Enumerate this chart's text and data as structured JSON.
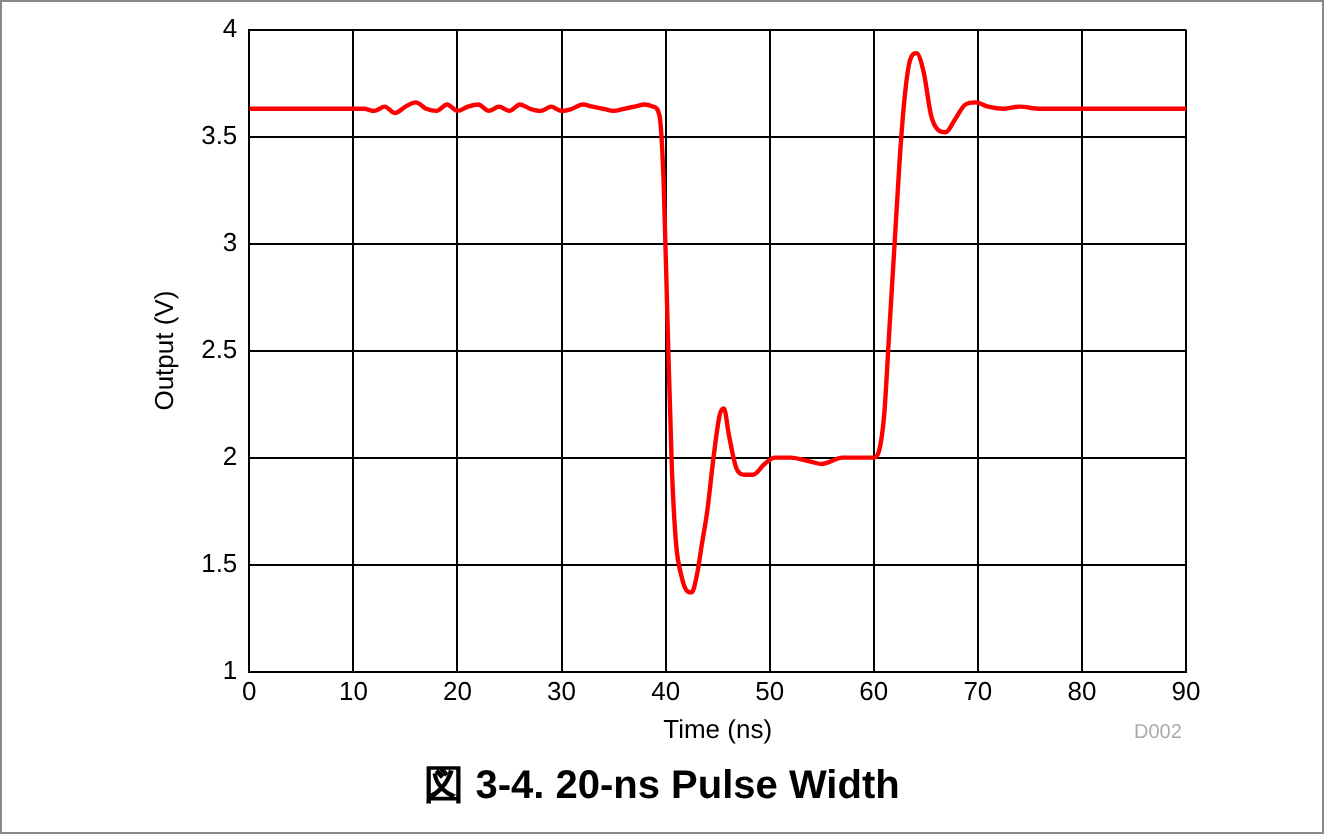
{
  "chart_data": {
    "type": "line",
    "title": "図 3-4. 20-ns Pulse Width",
    "xlabel": "Time (ns)",
    "ylabel": "Output (V)",
    "annotations": [
      "D002"
    ],
    "x": [
      0,
      10,
      11,
      12,
      13,
      14,
      15,
      16,
      17,
      18,
      19,
      20,
      21,
      22,
      23,
      24,
      25,
      26,
      27,
      28,
      29,
      30,
      31,
      32,
      33,
      34,
      35,
      36,
      37,
      38,
      38.8,
      39.4,
      39.8,
      40.2,
      40.6,
      41,
      41.5,
      42,
      42.5,
      43,
      43.5,
      44,
      44.6,
      45.2,
      45.6,
      46.1,
      46.8,
      47.6,
      48.4,
      49.5,
      50.5,
      52,
      54,
      55,
      57,
      59,
      60,
      60.5,
      61,
      61.5,
      62,
      62.5,
      63,
      63.5,
      64.1,
      64.8,
      65.5,
      66.2,
      66.9,
      67.8,
      68.8,
      69.8,
      71,
      72.5,
      74,
      76,
      80,
      85,
      90
    ],
    "series": [
      {
        "color": "#ff0000",
        "values": [
          3.63,
          3.63,
          3.63,
          3.62,
          3.64,
          3.61,
          3.64,
          3.66,
          3.63,
          3.62,
          3.65,
          3.62,
          3.64,
          3.65,
          3.62,
          3.64,
          3.62,
          3.65,
          3.63,
          3.62,
          3.64,
          3.62,
          3.63,
          3.65,
          3.64,
          3.63,
          3.62,
          3.63,
          3.64,
          3.65,
          3.64,
          3.6,
          3.3,
          2.6,
          1.95,
          1.6,
          1.45,
          1.38,
          1.37,
          1.45,
          1.6,
          1.75,
          2.0,
          2.2,
          2.23,
          2.1,
          1.95,
          1.92,
          1.92,
          1.97,
          2.0,
          2.0,
          1.98,
          1.97,
          2.0,
          2.0,
          2.0,
          2.03,
          2.2,
          2.6,
          3.0,
          3.4,
          3.7,
          3.86,
          3.89,
          3.8,
          3.6,
          3.53,
          3.52,
          3.58,
          3.65,
          3.66,
          3.64,
          3.63,
          3.64,
          3.63,
          3.63,
          3.63,
          3.63
        ]
      }
    ],
    "xlim": [
      0,
      90
    ],
    "xticks": [
      0,
      10,
      20,
      30,
      40,
      50,
      60,
      70,
      80,
      90
    ],
    "ylim": [
      1,
      4
    ],
    "yticks": [
      1,
      1.5,
      2,
      2.5,
      3,
      3.5,
      4
    ],
    "grid": true,
    "legend": false,
    "marker": "none",
    "line_style": "solid"
  }
}
